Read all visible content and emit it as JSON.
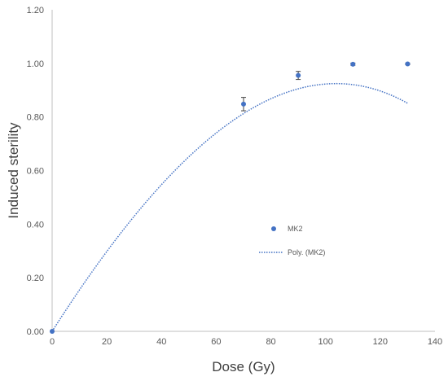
{
  "chart_data": {
    "type": "scatter",
    "title": "",
    "xlabel": "Dose (Gy)",
    "ylabel": "Induced sterility",
    "xlim": [
      0,
      140
    ],
    "ylim": [
      0,
      1.2
    ],
    "x_ticks": [
      "0",
      "20",
      "40",
      "60",
      "80",
      "100",
      "120",
      "140"
    ],
    "y_ticks": [
      "0.00",
      "0.20",
      "0.40",
      "0.60",
      "0.80",
      "1.00",
      "1.20"
    ],
    "grid": false,
    "legend_position": "center-right",
    "series": [
      {
        "name": "MK2",
        "kind": "scatter",
        "color": "#4472C4",
        "points": [
          {
            "x": 0,
            "y": 0.0,
            "err": 0.0
          },
          {
            "x": 70,
            "y": 0.848,
            "err": 0.025
          },
          {
            "x": 90,
            "y": 0.955,
            "err": 0.015
          },
          {
            "x": 110,
            "y": 0.997,
            "err": 0.004
          },
          {
            "x": 130,
            "y": 0.998,
            "err": 0.003
          }
        ]
      },
      {
        "name": "Poly. (MK2)",
        "kind": "trendline",
        "color": "#4472C4",
        "style": "dotted",
        "polynomial_coefficients": [
          0.0,
          0.01599,
          -5.08e-05,
          -1.68e-07
        ]
      }
    ]
  }
}
